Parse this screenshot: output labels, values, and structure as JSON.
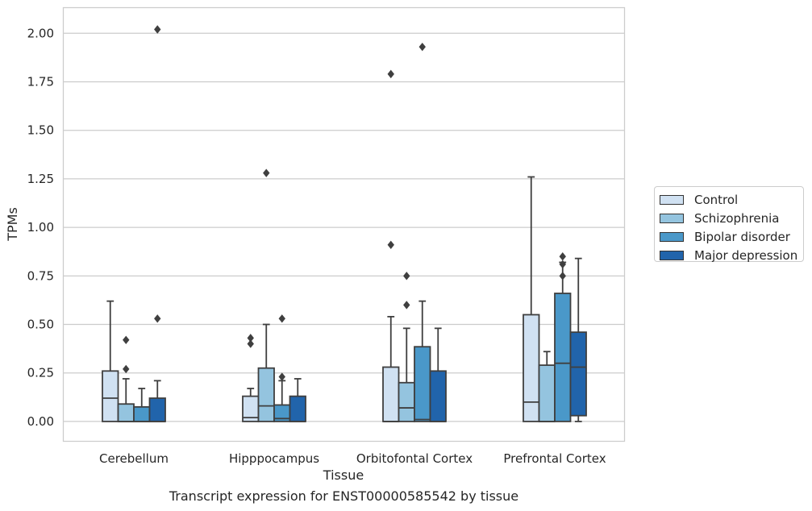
{
  "chart_data": {
    "type": "box",
    "title": "",
    "caption": "Transcript expression for ENST00000585542 by tissue",
    "xlabel": "Tissue",
    "ylabel": "TPMs",
    "ylim": [
      -0.1,
      2.13
    ],
    "yticks": [
      0.0,
      0.25,
      0.5,
      0.75,
      1.0,
      1.25,
      1.5,
      1.75,
      2.0
    ],
    "ytick_labels": [
      "0.00",
      "0.25",
      "0.50",
      "0.75",
      "1.00",
      "1.25",
      "1.50",
      "1.75",
      "2.00"
    ],
    "grid": "horizontal",
    "legend_position": "right",
    "categories": [
      "Cerebellum",
      "Hipppocampus",
      "Orbitofontal Cortex",
      "Prefrontal Cortex"
    ],
    "series": [
      {
        "name": "Control",
        "color": "#d0e1f2",
        "boxes": [
          {
            "q1": 0.0,
            "median": 0.12,
            "q3": 0.26,
            "whisker_low": 0.0,
            "whisker_high": 0.62,
            "outliers": []
          },
          {
            "q1": 0.0,
            "median": 0.02,
            "q3": 0.13,
            "whisker_low": 0.0,
            "whisker_high": 0.17,
            "outliers": [
              0.4,
              0.43
            ]
          },
          {
            "q1": 0.0,
            "median": 0.0,
            "q3": 0.28,
            "whisker_low": 0.0,
            "whisker_high": 0.54,
            "outliers": [
              0.91,
              1.79
            ]
          },
          {
            "q1": 0.0,
            "median": 0.1,
            "q3": 0.55,
            "whisker_low": 0.0,
            "whisker_high": 1.26,
            "outliers": []
          }
        ]
      },
      {
        "name": "Schizophrenia",
        "color": "#94c4df",
        "boxes": [
          {
            "q1": 0.0,
            "median": 0.0,
            "q3": 0.09,
            "whisker_low": 0.0,
            "whisker_high": 0.22,
            "outliers": [
              0.27,
              0.42
            ]
          },
          {
            "q1": 0.0,
            "median": 0.08,
            "q3": 0.275,
            "whisker_low": 0.0,
            "whisker_high": 0.5,
            "outliers": [
              1.28
            ]
          },
          {
            "q1": 0.0,
            "median": 0.07,
            "q3": 0.2,
            "whisker_low": 0.0,
            "whisker_high": 0.48,
            "outliers": [
              0.6,
              0.75
            ]
          },
          {
            "q1": 0.0,
            "median": 0.0,
            "q3": 0.29,
            "whisker_low": 0.0,
            "whisker_high": 0.36,
            "outliers": []
          }
        ]
      },
      {
        "name": "Bipolar disorder",
        "color": "#4a98c9",
        "boxes": [
          {
            "q1": 0.0,
            "median": 0.0,
            "q3": 0.075,
            "whisker_low": 0.0,
            "whisker_high": 0.17,
            "outliers": []
          },
          {
            "q1": 0.0,
            "median": 0.015,
            "q3": 0.085,
            "whisker_low": 0.0,
            "whisker_high": 0.21,
            "outliers": [
              0.23,
              0.53
            ]
          },
          {
            "q1": 0.0,
            "median": 0.01,
            "q3": 0.385,
            "whisker_low": 0.0,
            "whisker_high": 0.62,
            "outliers": [
              1.93
            ]
          },
          {
            "q1": 0.0,
            "median": 0.3,
            "q3": 0.66,
            "whisker_low": 0.0,
            "whisker_high": 0.82,
            "outliers": [
              0.75,
              0.81,
              0.85
            ]
          }
        ]
      },
      {
        "name": "Major depression",
        "color": "#2164ab",
        "boxes": [
          {
            "q1": 0.0,
            "median": 0.0,
            "q3": 0.12,
            "whisker_low": 0.0,
            "whisker_high": 0.21,
            "outliers": [
              0.53,
              2.02
            ]
          },
          {
            "q1": 0.0,
            "median": 0.0,
            "q3": 0.13,
            "whisker_low": 0.0,
            "whisker_high": 0.22,
            "outliers": []
          },
          {
            "q1": 0.0,
            "median": 0.0,
            "q3": 0.26,
            "whisker_low": 0.0,
            "whisker_high": 0.48,
            "outliers": []
          },
          {
            "q1": 0.03,
            "median": 0.28,
            "q3": 0.46,
            "whisker_low": 0.0,
            "whisker_high": 0.84,
            "outliers": []
          }
        ]
      }
    ]
  }
}
